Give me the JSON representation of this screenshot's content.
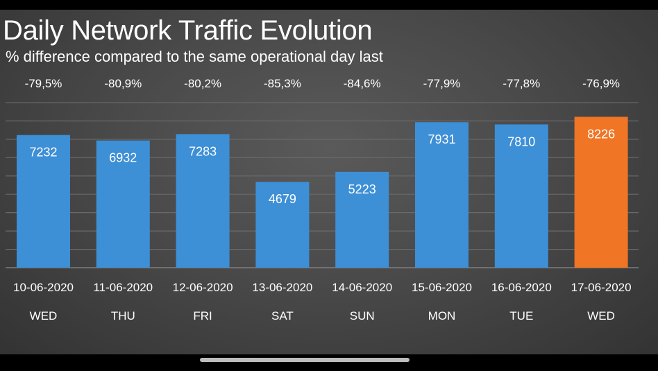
{
  "chart_data": {
    "type": "bar",
    "title": "Daily Network Traffic Evolution",
    "subtitle": "% difference compared to the same operational day last",
    "categories": [
      "10-06-2020",
      "11-06-2020",
      "12-06-2020",
      "13-06-2020",
      "14-06-2020",
      "15-06-2020",
      "16-06-2020",
      "17-06-2020"
    ],
    "weekdays": [
      "WED",
      "THU",
      "FRI",
      "SAT",
      "SUN",
      "MON",
      "TUE",
      "WED"
    ],
    "values": [
      7232,
      6932,
      7283,
      4679,
      5223,
      7931,
      7810,
      8226
    ],
    "value_labels": [
      "7232",
      "6932",
      "7283",
      "4679",
      "5223",
      "7931",
      "7810",
      "8226"
    ],
    "pct_labels": [
      "-79,5%",
      "-80,9%",
      "-80,2%",
      "-85,3%",
      "-84,6%",
      "-77,9%",
      "-77,8%",
      "-76,9%"
    ],
    "ylim": [
      0,
      9000
    ],
    "grid": true,
    "bar_color": "#3d8fd6",
    "highlight_color": "#f07524",
    "highlight_index": 7
  }
}
